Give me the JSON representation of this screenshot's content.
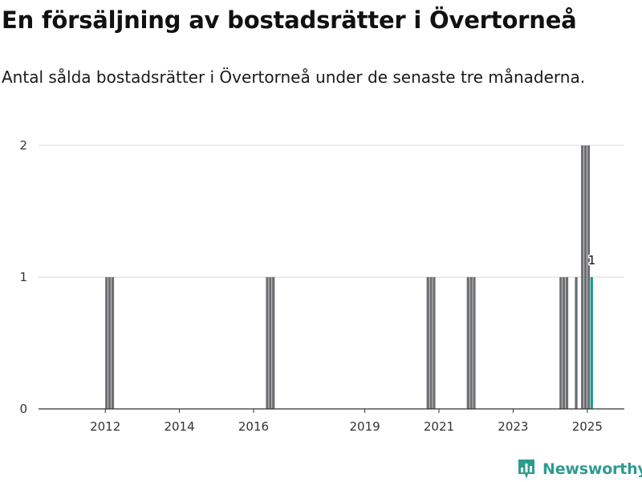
{
  "header": {
    "title": "En försäljning av bostadsrätter i Övertorneå",
    "subtitle": "Antal sålda bostadsrätter i Övertorneå under de senaste tre månaderna."
  },
  "brand": {
    "name": "Newsworthy",
    "icon": "newsworthy-chart-icon",
    "color": "#2e9b8f"
  },
  "colors": {
    "bar": "#6d6e72",
    "highlight": "#1a9b8c",
    "grid": "#d9d9d9",
    "axis": "#333333"
  },
  "chart_data": {
    "type": "bar",
    "x_axis": "date (monthly bars)",
    "ylim": [
      0,
      2
    ],
    "yticks": [
      0,
      1,
      2
    ],
    "xticks": [
      "2012",
      "2014",
      "2016",
      "2019",
      "2021",
      "2023",
      "2025"
    ],
    "grid": "horizontal",
    "series": [
      {
        "values": [
          {
            "x": "2012-01",
            "y": 1
          },
          {
            "x": "2012-02",
            "y": 1
          },
          {
            "x": "2012-03",
            "y": 1
          },
          {
            "x": "2016-05",
            "y": 1
          },
          {
            "x": "2016-06",
            "y": 1
          },
          {
            "x": "2016-07",
            "y": 1
          },
          {
            "x": "2020-09",
            "y": 1
          },
          {
            "x": "2020-10",
            "y": 1
          },
          {
            "x": "2020-11",
            "y": 1
          },
          {
            "x": "2021-10",
            "y": 1
          },
          {
            "x": "2021-11",
            "y": 1
          },
          {
            "x": "2021-12",
            "y": 1
          },
          {
            "x": "2024-04",
            "y": 1
          },
          {
            "x": "2024-05",
            "y": 1
          },
          {
            "x": "2024-06",
            "y": 1
          },
          {
            "x": "2024-09",
            "y": 1
          },
          {
            "x": "2024-11",
            "y": 2
          },
          {
            "x": "2024-12",
            "y": 2
          },
          {
            "x": "2025-01",
            "y": 2
          },
          {
            "x": "2025-02",
            "y": 1,
            "highlight": true
          }
        ]
      }
    ],
    "annotations": [
      {
        "x": "2025-02",
        "text": "1"
      }
    ]
  }
}
